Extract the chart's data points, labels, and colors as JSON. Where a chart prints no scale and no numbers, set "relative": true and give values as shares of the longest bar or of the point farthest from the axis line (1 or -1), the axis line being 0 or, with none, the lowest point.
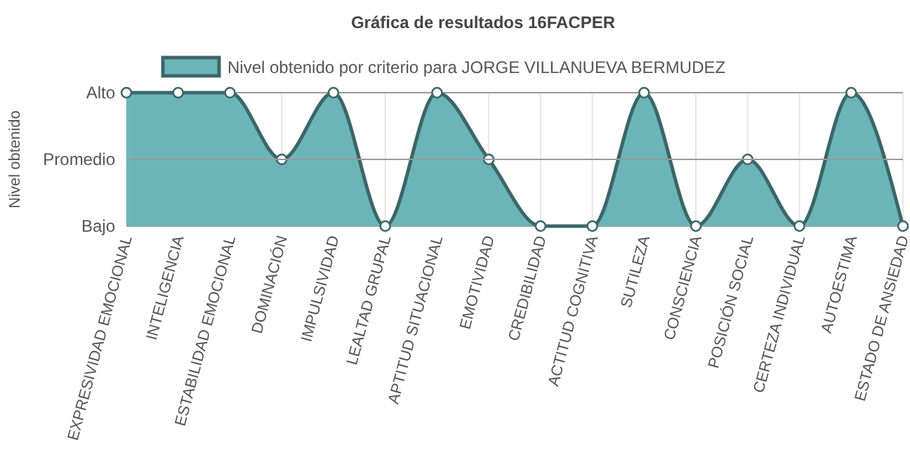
{
  "chart_data": {
    "type": "area",
    "title": "Gráfica de resultados 16FACPER",
    "ylabel": "Nivel obtenido",
    "categories": [
      "EXPRESIVIDAD EMOCIONAL",
      "INTELIGENCIA",
      "ESTABILIDAD EMOCIONAL",
      "DOMINACIÓN",
      "IMPULSIVIDAD",
      "LEALTAD GRUPAL",
      "APTITUD SITUACIONAL",
      "EMOTIVIDAD",
      "CREDIBILIDAD",
      "ACTITUD COGNITIVA",
      "SUTILEZA",
      "CONSCIENCIA",
      "POSICIÓN SOCIAL",
      "CERTEZA INDIVIDUAL",
      "AUTOESTIMA",
      "ESTADO DE ANSIEDAD"
    ],
    "series": [
      {
        "name": "Nivel obtenido por criterio para JORGE VILLANUEVA BERMUDEZ",
        "color": "#6bb5b8",
        "values": [
          1,
          1,
          1,
          0.5,
          1,
          0,
          1,
          0.5,
          0,
          0,
          1,
          0,
          0.5,
          0,
          1,
          0
        ]
      }
    ],
    "relative": true,
    "annotations": [
      "Bajo",
      "Alto"
    ],
    "ref_lines": [
      {
        "axis": "y",
        "value": 0.5,
        "label": "Promedio",
        "color": "#999999"
      }
    ],
    "grid": true,
    "legend": "top",
    "marker": "circle",
    "line_style": "solid"
  }
}
